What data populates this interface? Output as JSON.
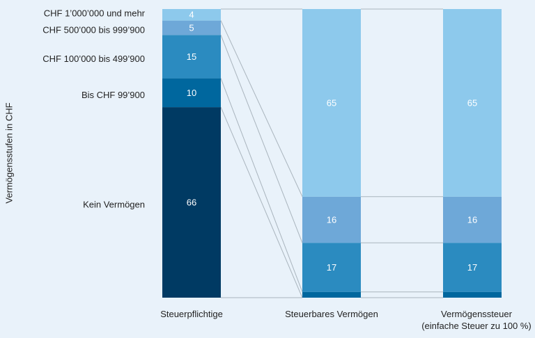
{
  "chart_data": {
    "type": "stacked-bar",
    "y_axis_label": "Vermögensstufen in CHF",
    "categories": [
      "Steuerpflichtige",
      "Steuerbares Vermögen",
      "Vermögenssteuer\n(einfache Steuer zu 100 %)"
    ],
    "ylim": [
      0,
      100
    ],
    "series": [
      {
        "name": "Kein Vermögen",
        "color": "#003a63",
        "values": [
          66,
          0,
          0
        ]
      },
      {
        "name": "Bis  CHF 99’900",
        "color": "#00679e",
        "values": [
          10,
          2,
          2
        ]
      },
      {
        "name": "CHF 100’000 bis 499’900",
        "color": "#2b8bc0",
        "values": [
          15,
          17,
          17
        ]
      },
      {
        "name": "CHF 500’000 bis 999’900",
        "color": "#6ea8d8",
        "values": [
          5,
          16,
          16
        ]
      },
      {
        "name": "CHF 1’000’000 und mehr",
        "color": "#8dc9ec",
        "values": [
          4,
          65,
          65
        ]
      }
    ]
  }
}
